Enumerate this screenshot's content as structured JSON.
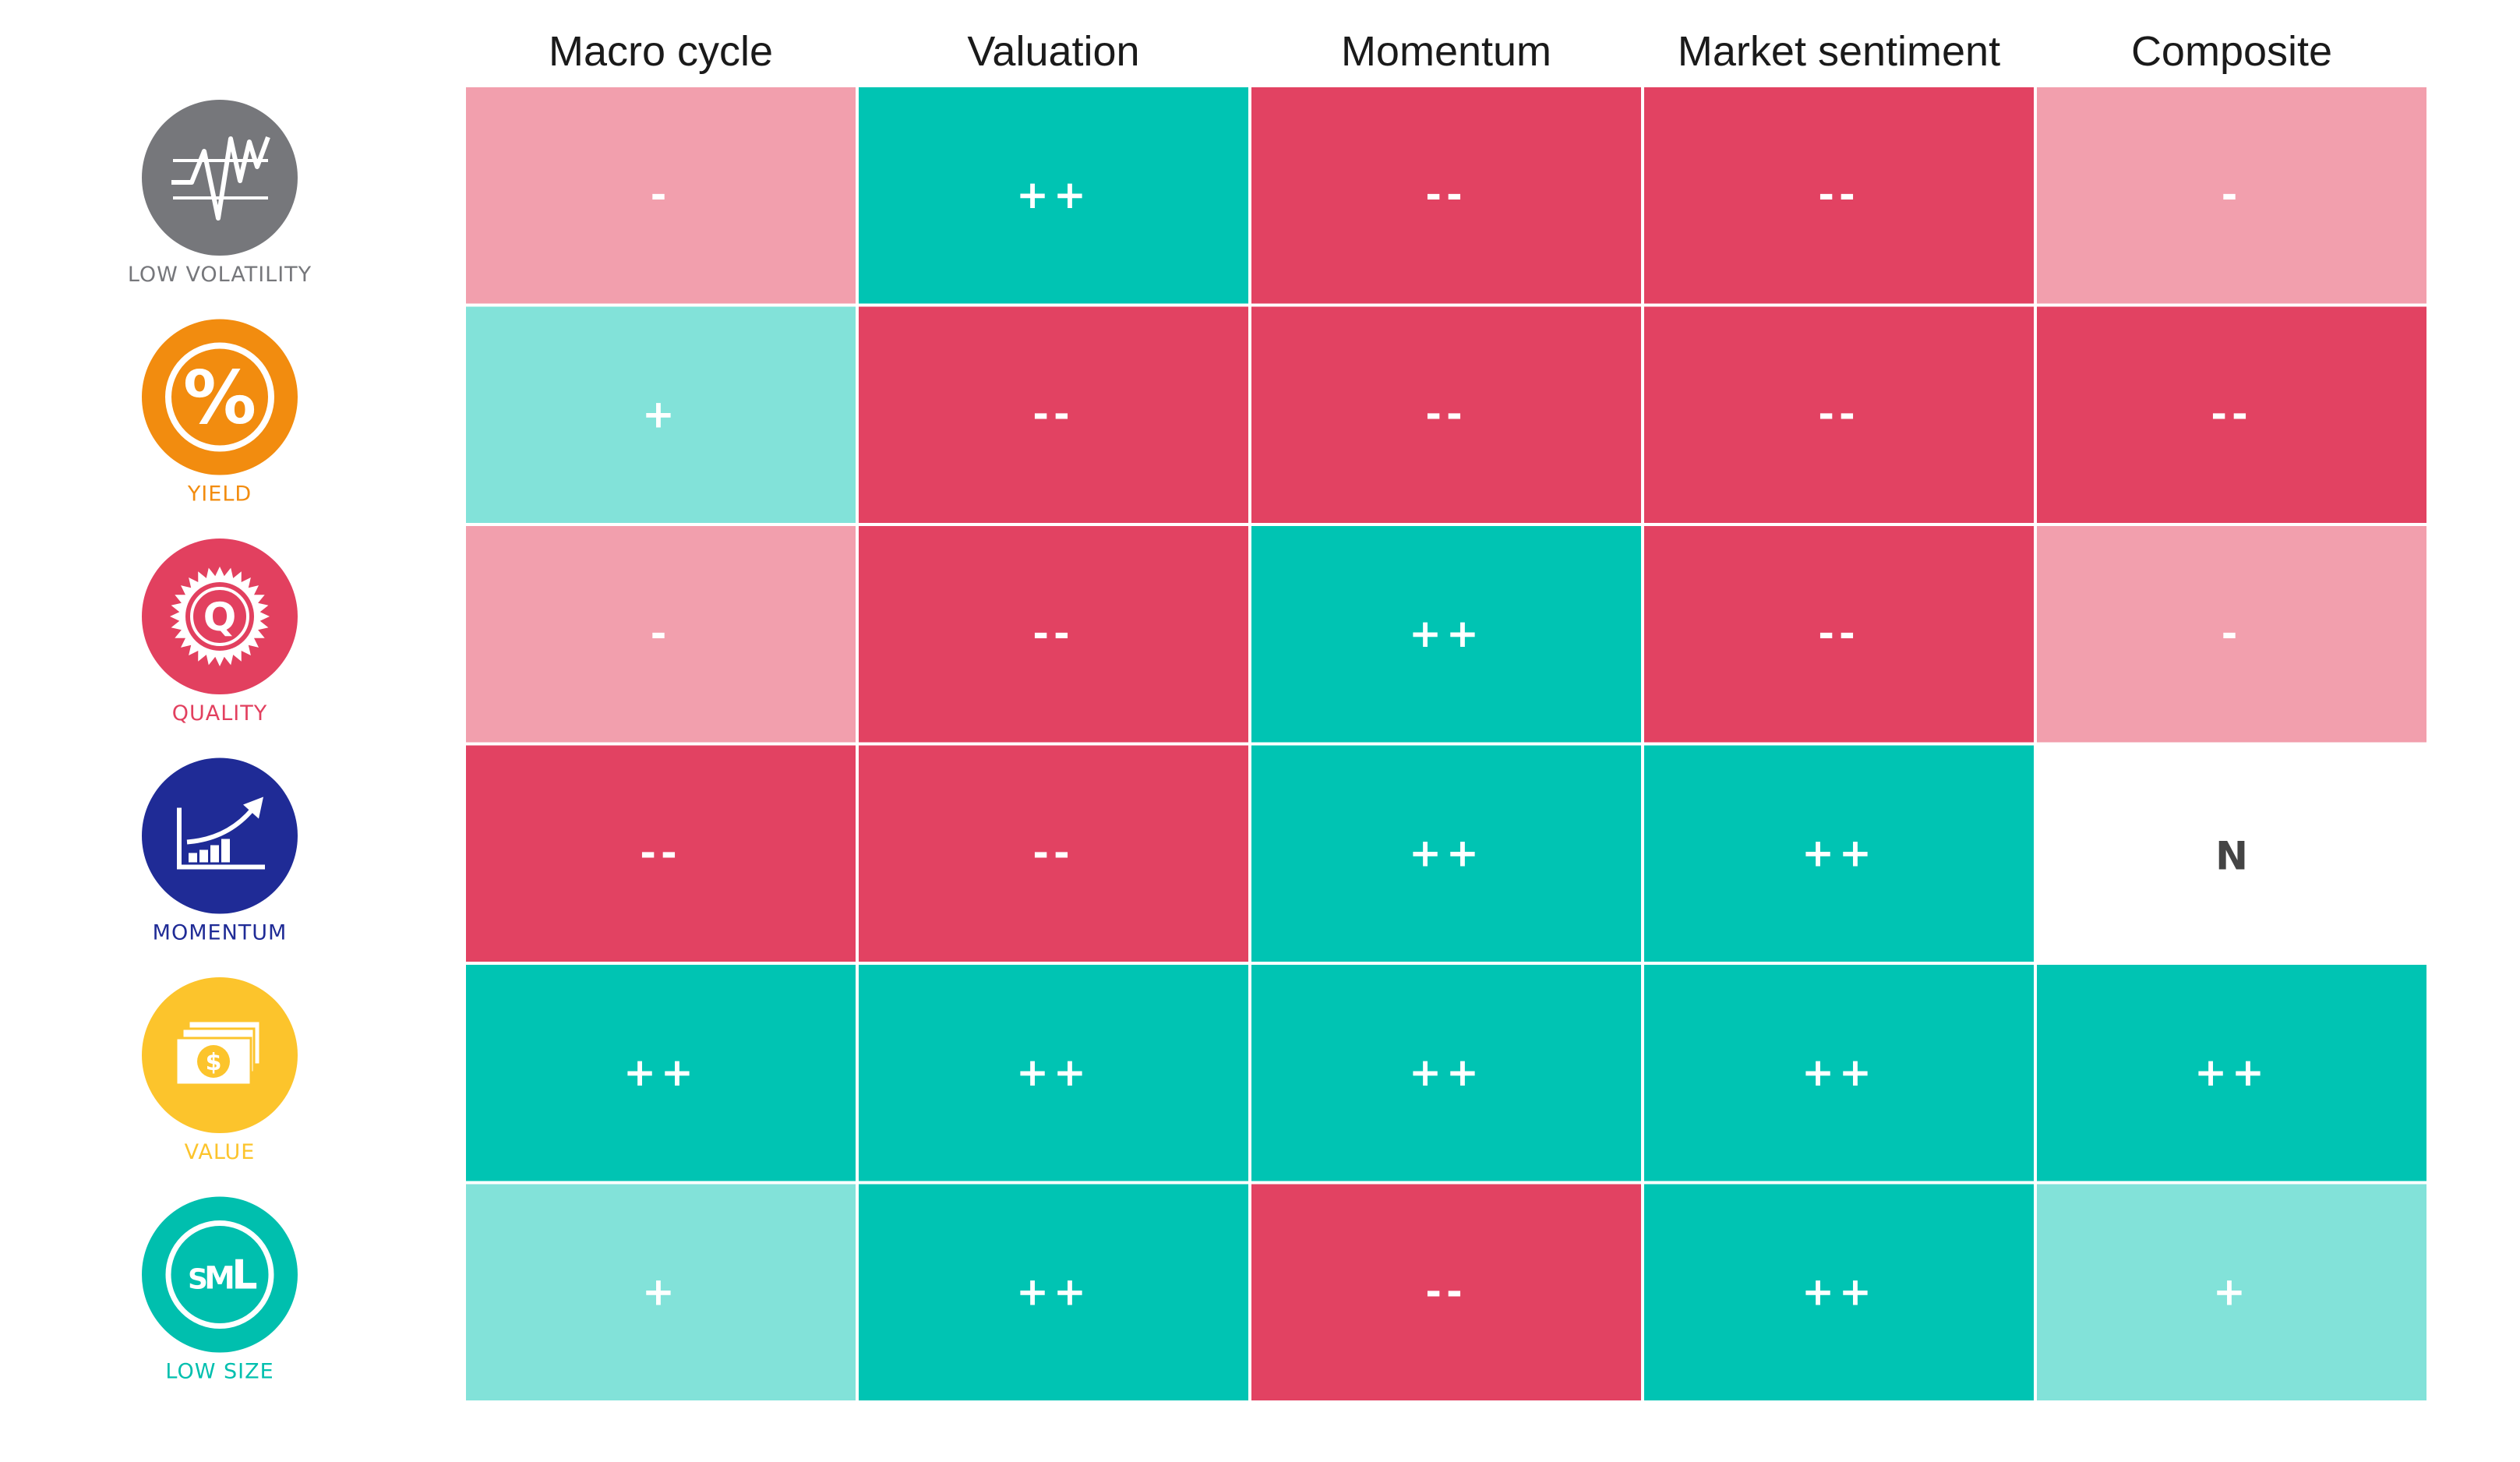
{
  "chart_data": {
    "type": "heatmap",
    "columns": [
      "Macro cycle",
      "Valuation",
      "Momentum",
      "Market sentiment",
      "Composite"
    ],
    "rows": [
      {
        "label": "LOW VOLATILITY",
        "icon": "low-volatility-icon",
        "color": "#76777b",
        "values": [
          "-",
          "++",
          "--",
          "--",
          "-"
        ]
      },
      {
        "label": "YIELD",
        "icon": "percent-icon",
        "color": "#f28c0f",
        "values": [
          "+",
          "--",
          "--",
          "--",
          "--"
        ]
      },
      {
        "label": "QUALITY",
        "icon": "quality-seal-icon",
        "color": "#e2405f",
        "values": [
          "-",
          "--",
          "++",
          "--",
          "-"
        ]
      },
      {
        "label": "MOMENTUM",
        "icon": "rising-chart-icon",
        "color": "#1f2b96",
        "values": [
          "--",
          "--",
          "++",
          "++",
          "N"
        ]
      },
      {
        "label": "VALUE",
        "icon": "dollar-bill-icon",
        "color": "#fcc42c",
        "values": [
          "++",
          "++",
          "++",
          "++",
          "++"
        ]
      },
      {
        "label": "LOW SIZE",
        "icon": "sml-icon",
        "color": "#00bfae",
        "values": [
          "+",
          "++",
          "--",
          "++",
          "+"
        ]
      }
    ],
    "scale": {
      "++": "#00c4b3",
      "+": "#82e2d9",
      "-": "#f29fad",
      "--": "#e24262",
      "N": "#ffffff"
    },
    "text_colors": {
      "default": "#ffffff",
      "N": "#444444"
    }
  }
}
